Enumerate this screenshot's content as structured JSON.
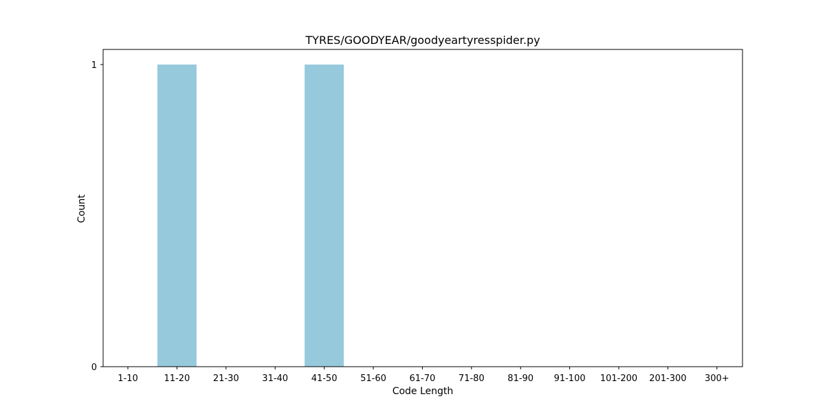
{
  "chart_data": {
    "type": "bar",
    "title": "TYRES/GOODYEAR/goodyeartyresspider.py",
    "xlabel": "Code Length",
    "ylabel": "Count",
    "categories": [
      "1-10",
      "11-20",
      "21-30",
      "31-40",
      "41-50",
      "51-60",
      "61-70",
      "71-80",
      "81-90",
      "91-100",
      "101-200",
      "201-300",
      "300+"
    ],
    "values": [
      0,
      1,
      0,
      0,
      1,
      0,
      0,
      0,
      0,
      0,
      0,
      0,
      0
    ],
    "ylim": [
      0,
      1.05
    ],
    "yticks": [
      0,
      1
    ],
    "grid": false,
    "bar_color": "#96c9dc"
  }
}
